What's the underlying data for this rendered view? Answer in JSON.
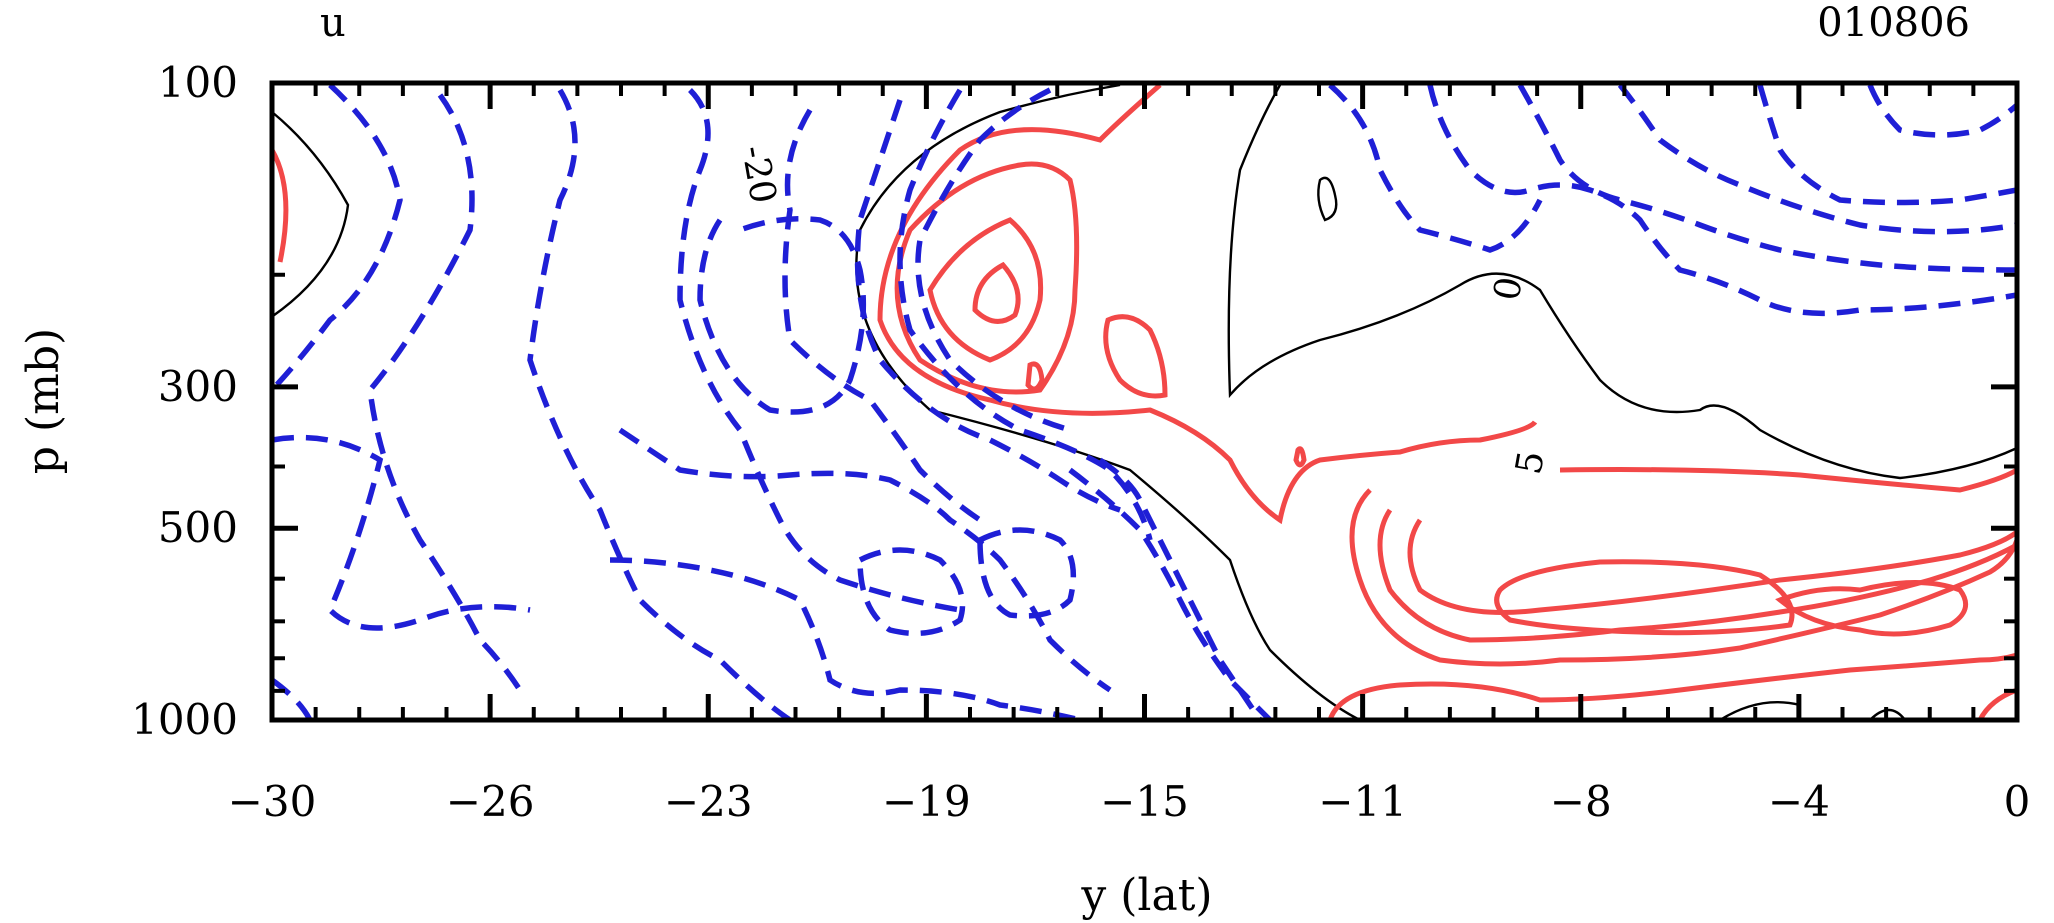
{
  "chart_data": {
    "type": "contour",
    "title": "u",
    "date_label": "010806",
    "xlabel": "y (lat)",
    "ylabel": "p (mb)",
    "xlim": [
      -30,
      0
    ],
    "ylim": [
      1000,
      100
    ],
    "y_scale": "log",
    "x_ticks": [
      "-30",
      "-26",
      "-23",
      "-19",
      "-15",
      "-11",
      "-8",
      "-4",
      "0"
    ],
    "x_tick_values": [
      -30,
      -26.25,
      -22.5,
      -18.75,
      -15,
      -11.25,
      -7.5,
      -3.75,
      0
    ],
    "y_ticks": [
      "100",
      "300",
      "500",
      "1000"
    ],
    "y_tick_values": [
      100,
      300,
      500,
      1000
    ],
    "contour_labels": [
      {
        "text": "-20",
        "x": -21.5,
        "p": 150
      },
      {
        "text": "0",
        "x": -7.7,
        "p": 250
      },
      {
        "text": "5",
        "x": -7.2,
        "p": 410
      }
    ],
    "legend": "none",
    "grid": false,
    "colors": {
      "positive": "#f24848",
      "negative": "#1f1fd6",
      "zero": "#000000",
      "axis": "#000000"
    },
    "line_styles": {
      "positive": "solid",
      "negative": "dashed",
      "zero": "thin solid"
    }
  }
}
